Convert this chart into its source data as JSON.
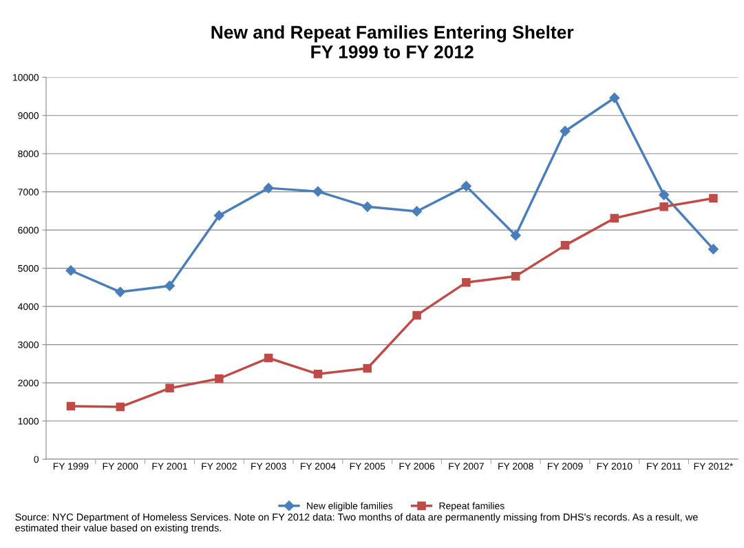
{
  "chart_data": {
    "type": "line",
    "title": "New and Repeat Families Entering Shelter\nFY 1999 to FY 2012",
    "categories": [
      "FY 1999",
      "FY 2000",
      "FY 2001",
      "FY 2002",
      "FY 2003",
      "FY 2004",
      "FY 2005",
      "FY 2006",
      "FY 2007",
      "FY 2008",
      "FY 2009",
      "FY 2010",
      "FY 2011",
      "FY 2012*"
    ],
    "series": [
      {
        "name": "New eligible families",
        "color": "#4a7ebb",
        "marker": "diamond",
        "values": [
          4940,
          4380,
          4540,
          6380,
          7100,
          7010,
          6610,
          6490,
          7150,
          5860,
          8590,
          9460,
          6920,
          5500
        ]
      },
      {
        "name": "Repeat families",
        "color": "#be4b48",
        "marker": "square",
        "values": [
          1390,
          1370,
          1860,
          2110,
          2650,
          2230,
          2380,
          3770,
          4630,
          4790,
          5600,
          6310,
          6610,
          6830
        ]
      }
    ],
    "ylim": [
      0,
      10000
    ],
    "yticks": [
      0,
      1000,
      2000,
      3000,
      4000,
      5000,
      6000,
      7000,
      8000,
      9000,
      10000
    ],
    "grid": "y",
    "legend": "bottom",
    "line_style": "solid",
    "annotations": [
      "Source: NYC Department of Homeless Services. Note on FY 2012 data: Two months of data are permanently missing from DHS's records. As a result, we estimated their value based on existing trends."
    ]
  }
}
